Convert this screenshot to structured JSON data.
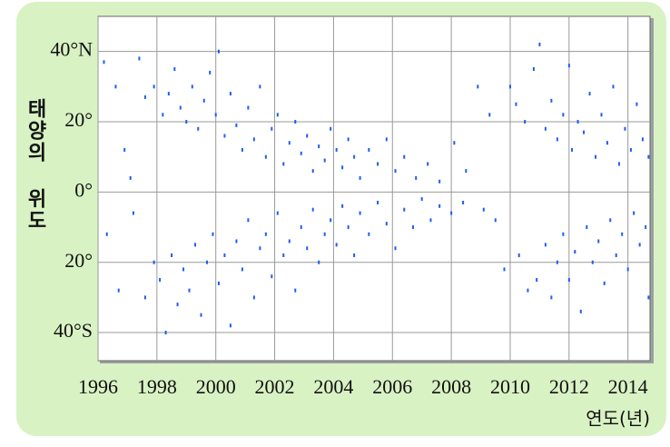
{
  "chart_data": {
    "type": "scatter",
    "x_label": "연도(년)",
    "y_label": "태양의 위도",
    "color": "#1f5cf0",
    "xlim": [
      1996,
      2014.75
    ],
    "ylim": [
      -48,
      50
    ],
    "xticks": [
      1996,
      1998,
      2000,
      2002,
      2004,
      2006,
      2008,
      2010,
      2012,
      2014
    ],
    "yticks": [
      {
        "value": 40,
        "label": "40°N"
      },
      {
        "value": 20,
        "label": "20°"
      },
      {
        "value": 0,
        "label": "0°"
      },
      {
        "value": -20,
        "label": "20°"
      },
      {
        "value": -40,
        "label": "40°S"
      }
    ],
    "grid": true,
    "x": [
      1996.2,
      1996.6,
      1996.9,
      1997.1,
      1997.4,
      1997.6,
      1997.9,
      1998.2,
      1998.4,
      1998.6,
      1998.8,
      1999.0,
      1999.2,
      1999.4,
      1999.6,
      1999.8,
      2000.0,
      2000.1,
      2000.3,
      2000.5,
      2000.7,
      2000.9,
      2001.1,
      2001.3,
      2001.5,
      2001.7,
      2001.9,
      2002.1,
      2002.3,
      2002.5,
      2002.7,
      2002.9,
      2003.1,
      2003.3,
      2003.5,
      2003.7,
      2003.9,
      2004.1,
      2004.3,
      2004.5,
      2004.7,
      2004.9,
      2005.2,
      2005.5,
      2005.8,
      2006.1,
      2006.4,
      2006.8,
      2007.2,
      2007.6,
      2008.1,
      2008.5,
      2008.9,
      2009.3,
      2010.0,
      2010.2,
      2010.5,
      2010.8,
      2011.0,
      2011.2,
      2011.4,
      2011.6,
      2011.8,
      2012.0,
      2012.1,
      2012.3,
      2012.5,
      2012.7,
      2012.9,
      2013.1,
      2013.3,
      2013.5,
      2013.7,
      2013.9,
      2014.1,
      2014.3,
      2014.5,
      2014.7,
      1996.3,
      1996.7,
      1997.2,
      1997.6,
      1997.9,
      1998.1,
      1998.3,
      1998.5,
      1998.7,
      1998.9,
      1999.1,
      1999.3,
      1999.5,
      1999.7,
      1999.9,
      2000.1,
      2000.3,
      2000.5,
      2000.7,
      2000.9,
      2001.1,
      2001.3,
      2001.5,
      2001.7,
      2001.9,
      2002.1,
      2002.3,
      2002.5,
      2002.7,
      2002.9,
      2003.1,
      2003.3,
      2003.5,
      2003.7,
      2003.9,
      2004.1,
      2004.3,
      2004.5,
      2004.7,
      2004.9,
      2005.2,
      2005.5,
      2005.8,
      2006.1,
      2006.4,
      2006.7,
      2007.0,
      2007.3,
      2007.6,
      2008.0,
      2008.4,
      2009.1,
      2009.5,
      2009.8,
      2010.3,
      2010.6,
      2010.9,
      2011.2,
      2011.4,
      2011.6,
      2011.8,
      2012.0,
      2012.2,
      2012.4,
      2012.6,
      2012.8,
      2013.0,
      2013.2,
      2013.4,
      2013.6,
      2013.8,
      2014.0,
      2014.2,
      2014.4,
      2014.6,
      2014.7
    ],
    "values": [
      37,
      30,
      12,
      4,
      38,
      27,
      30,
      22,
      28,
      35,
      24,
      20,
      30,
      18,
      26,
      34,
      22,
      40,
      16,
      28,
      19,
      12,
      24,
      15,
      30,
      10,
      18,
      22,
      8,
      14,
      20,
      11,
      16,
      6,
      13,
      9,
      18,
      12,
      7,
      15,
      10,
      4,
      12,
      8,
      15,
      6,
      10,
      4,
      8,
      3,
      14,
      6,
      30,
      22,
      30,
      25,
      20,
      35,
      42,
      18,
      26,
      15,
      22,
      36,
      12,
      20,
      17,
      28,
      10,
      22,
      14,
      30,
      8,
      18,
      12,
      25,
      15,
      10,
      -12,
      -28,
      -6,
      -30,
      -20,
      -25,
      -40,
      -18,
      -32,
      -22,
      -28,
      -15,
      -35,
      -20,
      -12,
      -26,
      -18,
      -38,
      -14,
      -22,
      -8,
      -30,
      -16,
      -12,
      -24,
      -6,
      -18,
      -14,
      -28,
      -10,
      -16,
      -5,
      -20,
      -12,
      -8,
      -15,
      -4,
      -10,
      -18,
      -6,
      -12,
      -3,
      -9,
      -16,
      -5,
      -10,
      -2,
      -8,
      -4,
      -6,
      -3,
      -5,
      -8,
      -22,
      -18,
      -28,
      -25,
      -15,
      -30,
      -20,
      -12,
      -25,
      -17,
      -34,
      -10,
      -20,
      -14,
      -26,
      -8,
      -18,
      -12,
      -22,
      -6,
      -15,
      -10,
      -30
    ]
  }
}
